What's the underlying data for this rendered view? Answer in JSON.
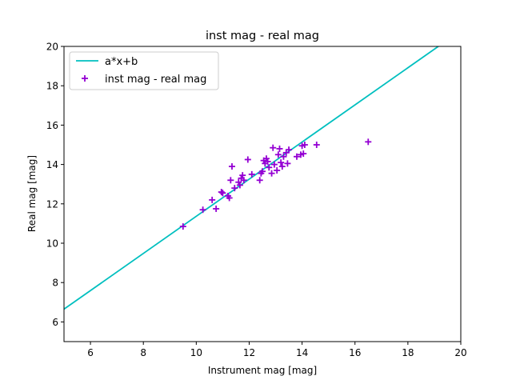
{
  "chart_data": {
    "type": "scatter",
    "title": "inst mag - real mag",
    "xlabel": "Instrument mag [mag]",
    "ylabel": "Real mag [mag]",
    "xlim": [
      5,
      20
    ],
    "ylim": [
      5,
      20
    ],
    "xticks": [
      6,
      8,
      10,
      12,
      14,
      16,
      18,
      20
    ],
    "yticks": [
      6,
      8,
      10,
      12,
      14,
      16,
      18,
      20
    ],
    "grid": false,
    "legend_position": "top-left",
    "fit_line": {
      "name": "a*x+b",
      "color": "#00bfbf",
      "x": [
        5,
        19.15
      ],
      "y": [
        6.65,
        20.0
      ]
    },
    "series": [
      {
        "name": "inst mag - real mag",
        "marker": "plus",
        "color": "#9400d3",
        "points": [
          [
            9.5,
            10.85
          ],
          [
            10.25,
            11.7
          ],
          [
            10.6,
            12.2
          ],
          [
            10.75,
            11.75
          ],
          [
            10.95,
            12.6
          ],
          [
            11.0,
            12.55
          ],
          [
            11.2,
            12.4
          ],
          [
            11.25,
            12.3
          ],
          [
            11.3,
            13.2
          ],
          [
            11.35,
            13.9
          ],
          [
            11.45,
            12.8
          ],
          [
            11.6,
            13.1
          ],
          [
            11.65,
            12.95
          ],
          [
            11.7,
            13.3
          ],
          [
            11.75,
            13.45
          ],
          [
            11.8,
            13.2
          ],
          [
            11.95,
            14.25
          ],
          [
            12.1,
            13.5
          ],
          [
            12.4,
            13.2
          ],
          [
            12.45,
            13.55
          ],
          [
            12.5,
            13.65
          ],
          [
            12.55,
            14.2
          ],
          [
            12.6,
            14.05
          ],
          [
            12.65,
            14.3
          ],
          [
            12.7,
            14.15
          ],
          [
            12.75,
            13.85
          ],
          [
            12.85,
            13.55
          ],
          [
            12.9,
            14.85
          ],
          [
            12.95,
            14.0
          ],
          [
            13.05,
            13.7
          ],
          [
            13.1,
            14.5
          ],
          [
            13.15,
            14.8
          ],
          [
            13.2,
            14.1
          ],
          [
            13.25,
            13.9
          ],
          [
            13.3,
            14.4
          ],
          [
            13.4,
            14.6
          ],
          [
            13.45,
            14.05
          ],
          [
            13.5,
            14.75
          ],
          [
            13.8,
            14.4
          ],
          [
            13.95,
            14.5
          ],
          [
            14.0,
            14.95
          ],
          [
            14.05,
            14.55
          ],
          [
            14.1,
            15.0
          ],
          [
            14.55,
            15.0
          ],
          [
            16.5,
            15.15
          ]
        ]
      }
    ]
  }
}
